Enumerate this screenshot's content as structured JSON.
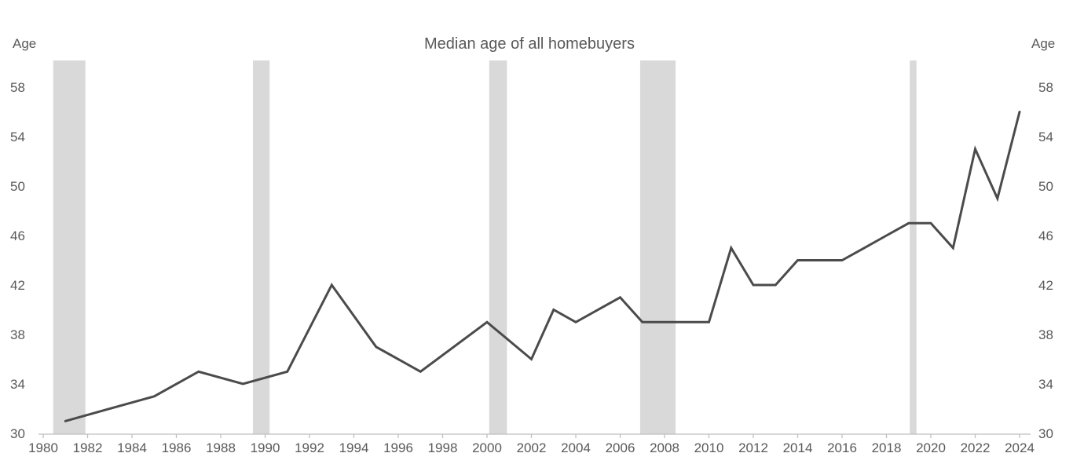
{
  "page": {
    "title": "Median age of all homebuyers",
    "y_axis_label_left": "Age",
    "y_axis_label_right": "Age"
  },
  "chart_data": {
    "type": "line",
    "title": "Median age of all homebuyers",
    "xlabel": "",
    "ylabel": "Age",
    "xlim": [
      1979.8,
      2024.6
    ],
    "ylim": [
      30,
      60
    ],
    "grid": false,
    "legend_position": "none",
    "x_ticks": [
      1980,
      1982,
      1984,
      1986,
      1988,
      1990,
      1992,
      1994,
      1996,
      1998,
      2000,
      2002,
      2004,
      2006,
      2008,
      2010,
      2012,
      2014,
      2016,
      2018,
      2020,
      2022,
      2024
    ],
    "y_ticks": [
      30,
      34,
      38,
      42,
      46,
      50,
      54,
      58
    ],
    "y_ticks_shown_both_sides": true,
    "series": [
      {
        "name": "Median age of all homebuyers",
        "points": [
          [
            1981,
            31
          ],
          [
            1985,
            33
          ],
          [
            1987,
            35
          ],
          [
            1989,
            34
          ],
          [
            1991,
            35
          ],
          [
            1993,
            42
          ],
          [
            1995,
            37
          ],
          [
            1997,
            35
          ],
          [
            2000,
            39
          ],
          [
            2002,
            36
          ],
          [
            2003,
            40
          ],
          [
            2004,
            39
          ],
          [
            2006,
            41
          ],
          [
            2007,
            39
          ],
          [
            2008,
            39
          ],
          [
            2009,
            39
          ],
          [
            2010,
            39
          ],
          [
            2011,
            45
          ],
          [
            2012,
            42
          ],
          [
            2013,
            42
          ],
          [
            2014,
            44
          ],
          [
            2015,
            44
          ],
          [
            2016,
            44
          ],
          [
            2017,
            45
          ],
          [
            2018,
            46
          ],
          [
            2019,
            47
          ],
          [
            2020,
            47
          ],
          [
            2021,
            45
          ],
          [
            2022,
            53
          ],
          [
            2023,
            49
          ],
          [
            2024,
            56
          ]
        ]
      }
    ],
    "recession_bands": [
      [
        1980.45,
        1981.9
      ],
      [
        1989.45,
        1990.2
      ],
      [
        2000.1,
        2000.9
      ],
      [
        2006.9,
        2008.5
      ],
      [
        2019.05,
        2019.35
      ]
    ],
    "colors": {
      "line": "#4b4b4b",
      "band": "#d9d9d9",
      "axis": "#bfbfbf",
      "text": "#595959",
      "background": "#ffffff"
    }
  }
}
